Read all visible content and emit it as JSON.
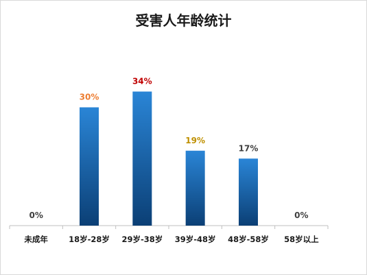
{
  "chart_data": {
    "type": "bar",
    "title": "受害人年龄统计",
    "categories": [
      "未成年",
      "18岁-28岁",
      "29岁-38岁",
      "39岁-48岁",
      "48岁-58岁",
      "58岁以上"
    ],
    "values": [
      0,
      30,
      34,
      19,
      17,
      0
    ],
    "data_labels": [
      "0%",
      "30%",
      "34%",
      "19%",
      "17%",
      "0%"
    ],
    "label_colors": [
      "#404040",
      "#ed7d31",
      "#c00000",
      "#bf9000",
      "#404040",
      "#404040"
    ],
    "bar_color_top": "#2a85d6",
    "bar_color_bottom": "#0b3f75",
    "axis_color": "#bfbfbf",
    "xlabel": "",
    "ylabel": "",
    "ylim": [
      0,
      40
    ],
    "grid": false,
    "legend": "none"
  }
}
